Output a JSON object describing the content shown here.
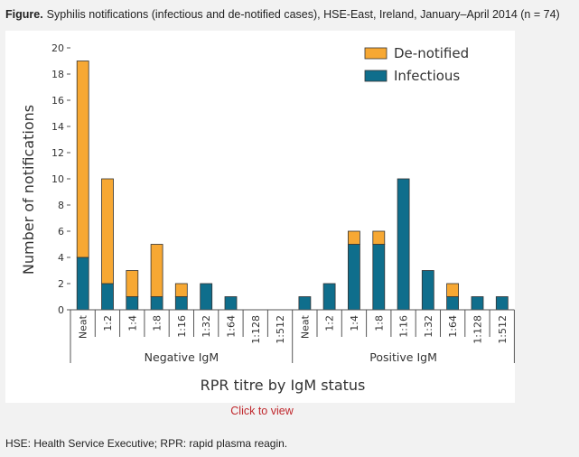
{
  "figure": {
    "label": "Figure.",
    "caption": "Syphilis notifications (infectious and de-notified cases), HSE-East, Ireland, January–April 2014 (n = 74)"
  },
  "link": {
    "label": "Click to view"
  },
  "footnote": "HSE: Health Service Executive; RPR: rapid plasma reagin.",
  "chart_data": {
    "type": "bar",
    "stacked": true,
    "ylabel": "Number of notifications",
    "xlabel": "RPR titre by IgM status",
    "ylim": [
      0,
      20
    ],
    "yticks": [
      0,
      2,
      4,
      6,
      8,
      10,
      12,
      14,
      16,
      18,
      20
    ],
    "legend_position": "top-right",
    "groups": [
      "Negative IgM",
      "Positive IgM"
    ],
    "categories": [
      "Neat",
      "1:2",
      "1:4",
      "1:8",
      "1:16",
      "1:32",
      "1:64",
      "1:128",
      "1:512",
      "Neat",
      "1:2",
      "1:4",
      "1:8",
      "1:16",
      "1:32",
      "1:64",
      "1:128",
      "1:512"
    ],
    "category_group": [
      0,
      0,
      0,
      0,
      0,
      0,
      0,
      0,
      0,
      1,
      1,
      1,
      1,
      1,
      1,
      1,
      1,
      1
    ],
    "series": [
      {
        "name": "Infectious",
        "color": "#0f6e8c",
        "values": [
          4,
          2,
          1,
          1,
          1,
          2,
          1,
          0,
          0,
          1,
          2,
          5,
          5,
          10,
          3,
          1,
          1,
          1
        ]
      },
      {
        "name": "De-notified",
        "color": "#f7a833",
        "values": [
          15,
          8,
          2,
          4,
          1,
          0,
          0,
          0,
          0,
          0,
          0,
          1,
          1,
          0,
          0,
          1,
          0,
          0
        ]
      }
    ]
  }
}
